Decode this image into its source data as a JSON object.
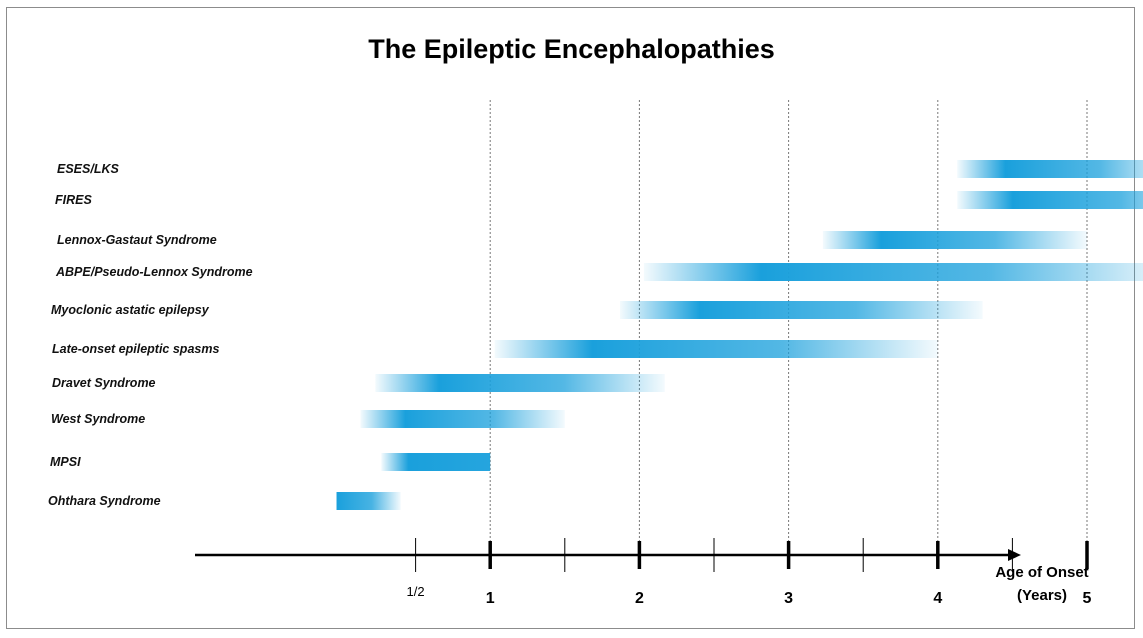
{
  "chart_data": {
    "type": "bar",
    "subtype": "horizontal-range",
    "title": "The Epileptic Encephalopathies",
    "xlabel_lines": [
      "Age of Onset",
      "(Years)"
    ],
    "xlim": [
      -0.95,
      5.6
    ],
    "x_ticks": [
      {
        "value": 0.5,
        "label": "1/2",
        "major": false
      },
      {
        "value": 1,
        "label": "1",
        "major": true
      },
      {
        "value": 1.5,
        "label": "",
        "major": false
      },
      {
        "value": 2,
        "label": "2",
        "major": true
      },
      {
        "value": 2.5,
        "label": "",
        "major": false
      },
      {
        "value": 3,
        "label": "3",
        "major": true
      },
      {
        "value": 3.5,
        "label": "",
        "major": false
      },
      {
        "value": 4,
        "label": "4",
        "major": true
      },
      {
        "value": 4.5,
        "label": "",
        "major": false
      },
      {
        "value": 5,
        "label": "5",
        "major": true
      }
    ],
    "gridlines_x": [
      1,
      2,
      3,
      4,
      5
    ],
    "grid_style": "dotted vertical at whole years",
    "bar_color": "#1aa0dc",
    "categories": [
      "ESES/LKS",
      "FIRES",
      "Lennox-Gastaut Syndrome",
      "ABPE/Pseudo-Lennox Syndrome",
      "Myoclonic astatic epilepsy",
      "Late-onset epileptic spasms",
      "Dravet Syndrome",
      "West Syndrome",
      "MPSI",
      "Ohthara Syndrome"
    ],
    "ranges": [
      {
        "start": 4.13,
        "end": 5.6,
        "fade_start": true,
        "fade_end": true
      },
      {
        "start": 4.13,
        "end": 5.82,
        "fade_start": true,
        "fade_end": true
      },
      {
        "start": 3.23,
        "end": 5.0,
        "fade_start": true,
        "fade_end": true
      },
      {
        "start": 2.03,
        "end": 5.6,
        "fade_start": true,
        "fade_end": true
      },
      {
        "start": 1.87,
        "end": 4.3,
        "fade_start": true,
        "fade_end": true
      },
      {
        "start": 1.03,
        "end": 4.0,
        "fade_start": true,
        "fade_end": true
      },
      {
        "start": 0.23,
        "end": 2.17,
        "fade_start": true,
        "fade_end": true
      },
      {
        "start": 0.13,
        "end": 1.5,
        "fade_start": true,
        "fade_end": true
      },
      {
        "start": 0.27,
        "end": 1.0,
        "fade_start": true,
        "fade_end": false
      },
      {
        "start": -0.03,
        "end": 0.4,
        "fade_start": false,
        "fade_end": true
      }
    ]
  }
}
